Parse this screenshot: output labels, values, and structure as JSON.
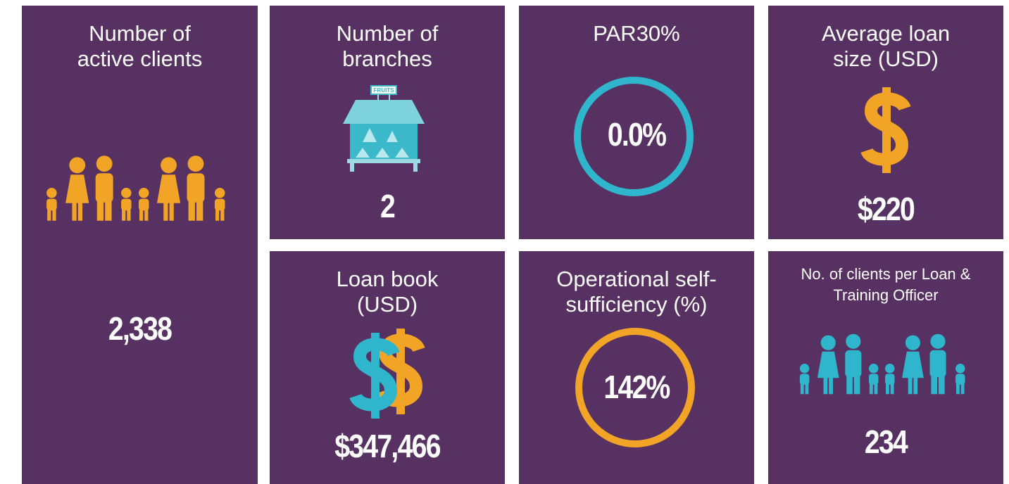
{
  "tiles": [
    {
      "title_lines": [
        "Number of",
        "active clients"
      ],
      "value": "2,338"
    },
    {
      "title_lines": [
        "Number of",
        "branches"
      ],
      "icon_label": "FRUITS",
      "value": "2"
    },
    {
      "title_lines": [
        "PAR30%"
      ],
      "value": "0.0%"
    },
    {
      "title_lines": [
        "Average loan",
        "size (USD)"
      ],
      "value": "$220"
    },
    {
      "title_lines": [
        "Loan book",
        "(USD)"
      ],
      "value": "$347,466"
    },
    {
      "title_lines": [
        "Operational self-",
        "sufficiency (%)"
      ],
      "value": "142%"
    },
    {
      "title_lines": [
        "No. of clients per Loan &",
        "Training Officer"
      ],
      "value": "234"
    }
  ]
}
